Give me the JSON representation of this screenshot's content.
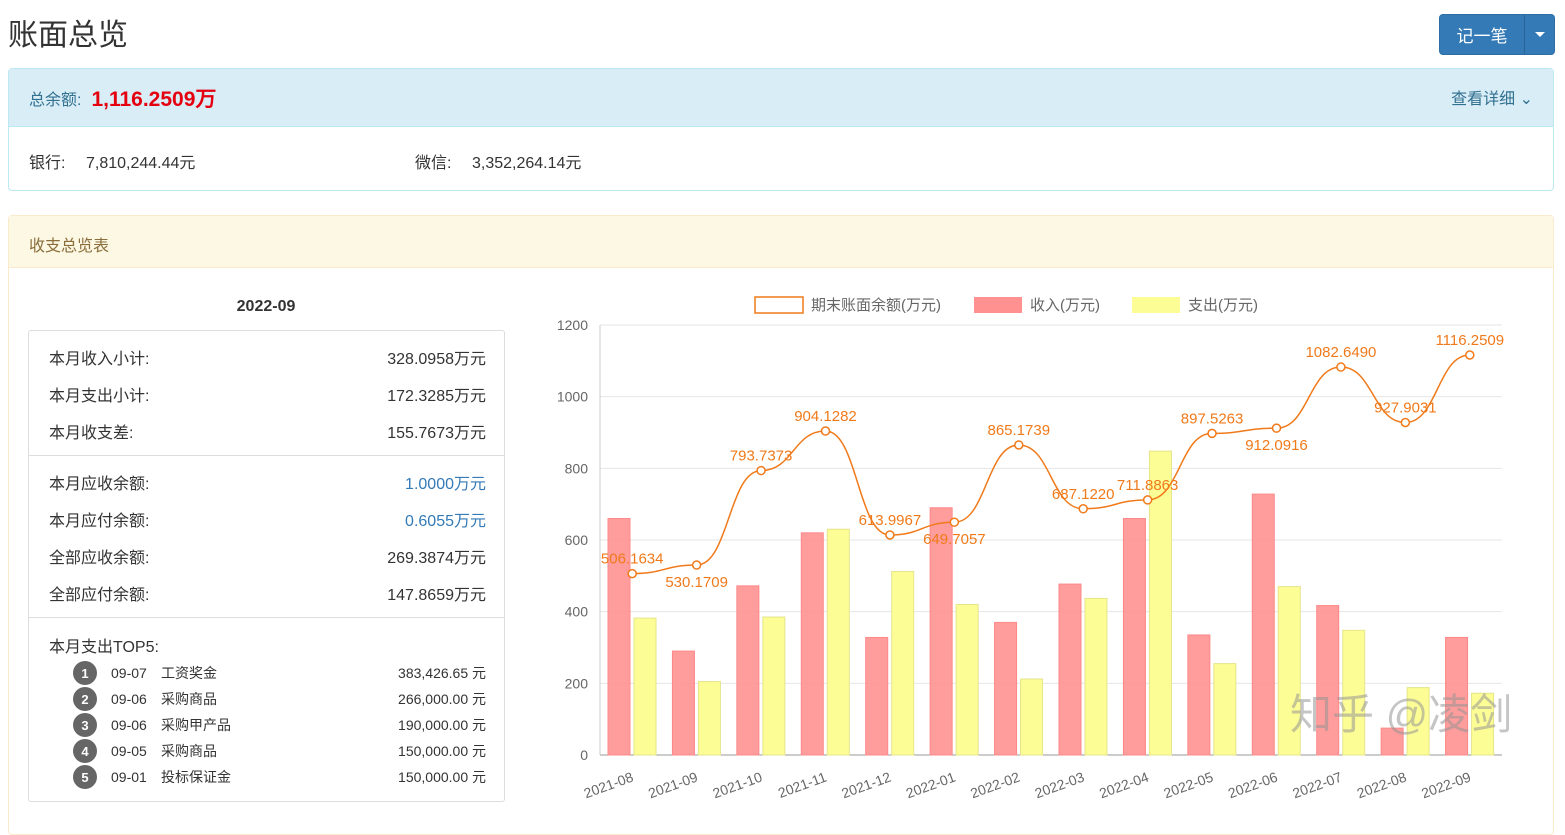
{
  "page_title": "账面总览",
  "record_button": "记一笔",
  "balance": {
    "label": "总余额:",
    "total": "1,116.2509万",
    "detail_link": "查看详细",
    "bank_label": "银行:",
    "bank_value": "7,810,244.44元",
    "wechat_label": "微信:",
    "wechat_value": "3,352,264.14元"
  },
  "summary": {
    "panel_title": "收支总览表",
    "month": "2022-09",
    "rows": [
      {
        "label": "本月收入小计:",
        "value": "328.0958万元"
      },
      {
        "label": "本月支出小计:",
        "value": "172.3285万元"
      },
      {
        "label": "本月收支差:",
        "value": "155.7673万元"
      },
      {
        "label": "本月应收余额:",
        "value": "1.0000万元"
      },
      {
        "label": "本月应付余额:",
        "value": "0.6055万元"
      },
      {
        "label": "全部应收余额:",
        "value": "269.3874万元"
      },
      {
        "label": "全部应付余额:",
        "value": "147.8659万元"
      }
    ],
    "top5_title": "本月支出TOP5:",
    "top5": [
      {
        "rank": "1",
        "date": "09-07",
        "name": "工资奖金",
        "amount": "383,426.65 元"
      },
      {
        "rank": "2",
        "date": "09-06",
        "name": "采购商品",
        "amount": "266,000.00 元"
      },
      {
        "rank": "3",
        "date": "09-06",
        "name": "采购甲产品",
        "amount": "190,000.00 元"
      },
      {
        "rank": "4",
        "date": "09-05",
        "name": "采购商品",
        "amount": "150,000.00 元"
      },
      {
        "rank": "5",
        "date": "09-01",
        "name": "投标保证金",
        "amount": "150,000.00 元"
      }
    ]
  },
  "watermark": "知乎 @凌剑",
  "chart_data": {
    "type": "bar",
    "categories": [
      "2021-08",
      "2021-09",
      "2021-10",
      "2021-11",
      "2021-12",
      "2022-01",
      "2022-02",
      "2022-03",
      "2022-04",
      "2022-05",
      "2022-06",
      "2022-07",
      "2022-08",
      "2022-09"
    ],
    "ylim": [
      0,
      1200
    ],
    "yticks": [
      "0",
      "200",
      "400",
      "600",
      "800",
      "1000",
      "1200"
    ],
    "series": [
      {
        "name": "期末账面余额(万元)",
        "type": "line",
        "color": "#f07a1a",
        "values": [
          506.1634,
          530.1709,
          793.7373,
          904.1282,
          613.9967,
          649.7057,
          865.1739,
          687.122,
          711.8863,
          897.5263,
          912.0916,
          1082.649,
          927.9031,
          1116.2509
        ],
        "labels": [
          "506.1634",
          "530.1709",
          "793.7373",
          "904.1282",
          "613.9967",
          "649.7057",
          "865.1739",
          "687.1220",
          "711.8863",
          "897.5263",
          "912.0916",
          "1082.6490",
          "927.9031",
          "1116.2509"
        ]
      },
      {
        "name": "收入(万元)",
        "type": "bar",
        "color": "#ff9191",
        "values": [
          660,
          290,
          472,
          620,
          328,
          690,
          370,
          477,
          660,
          335,
          728,
          417,
          75,
          328.0958
        ]
      },
      {
        "name": "支出(万元)",
        "type": "bar",
        "color": "#fdfd96",
        "values": [
          382,
          205,
          385,
          630,
          512,
          420,
          212,
          437,
          848,
          255,
          470,
          348,
          188,
          172.3285
        ]
      }
    ]
  }
}
